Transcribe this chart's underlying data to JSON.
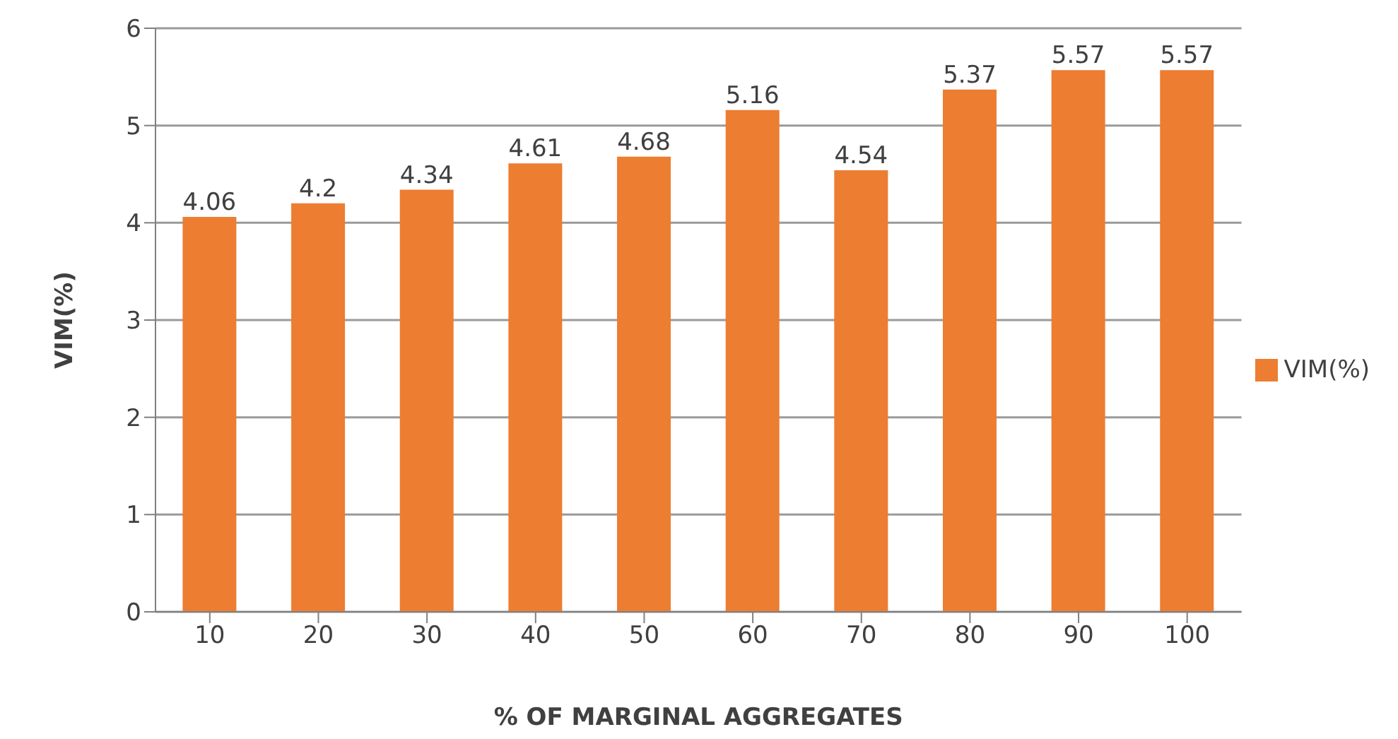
{
  "chart_data": {
    "type": "bar",
    "xlabel": "% OF MARGINAL AGGREGATES",
    "ylabel": "VIM(%)",
    "categories": [
      "10",
      "20",
      "30",
      "40",
      "50",
      "60",
      "70",
      "80",
      "90",
      "100"
    ],
    "series": [
      {
        "name": "VIM(%)",
        "color": "#ed7d31",
        "values": [
          4.06,
          4.2,
          4.34,
          4.61,
          4.68,
          5.16,
          4.54,
          5.37,
          5.57,
          5.57
        ]
      }
    ],
    "ylim": [
      0,
      6
    ],
    "yticks": [
      0,
      1,
      2,
      3,
      4,
      5,
      6
    ],
    "grid": "y",
    "legend": "right",
    "data_labels": true
  }
}
